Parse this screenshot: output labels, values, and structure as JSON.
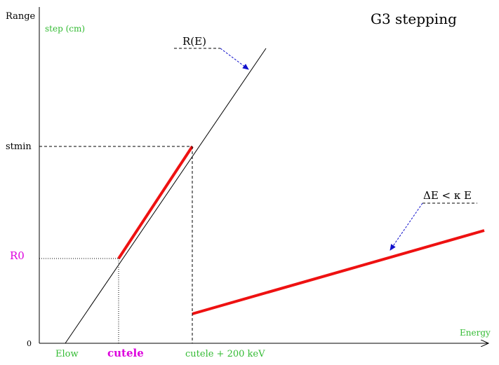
{
  "title": "G3 stepping",
  "axes": {
    "y_label": "Range",
    "y_sublabel": "step (cm)",
    "x_label": "Energy",
    "origin_label": "0"
  },
  "labels": {
    "range_curve": "R(E)",
    "stmin": "stmin",
    "r0": "R0",
    "elow": "Elow",
    "cutele": "cutele",
    "cutele_plus": "cutele + 200 keV",
    "delta_e": "ΔE < κ E"
  },
  "colors": {
    "black": "#000000",
    "green": "#33bb33",
    "magenta": "#dd00dd",
    "red": "#ee1111",
    "blue": "#1111cc"
  }
}
